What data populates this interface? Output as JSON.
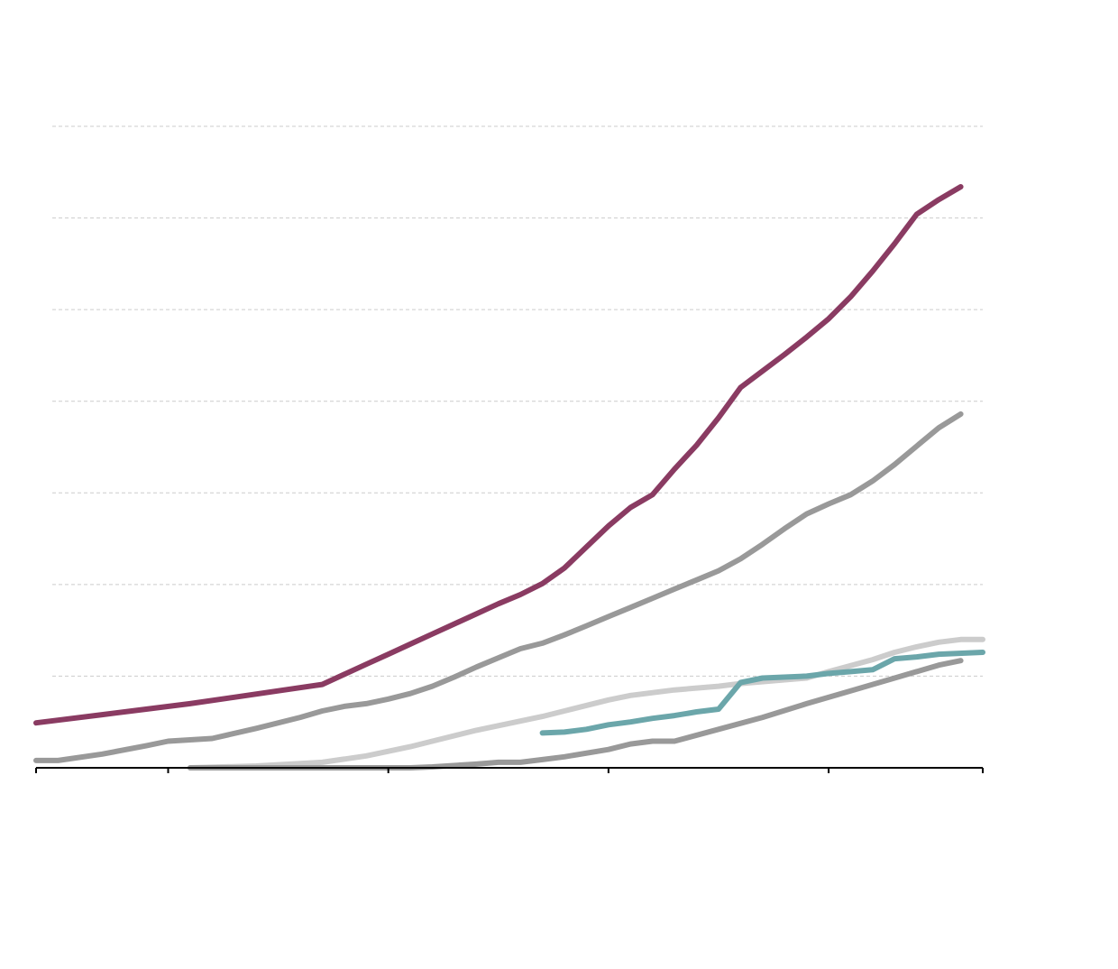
{
  "chart_data": {
    "type": "line",
    "title": "",
    "xlabel": "",
    "ylabel": "",
    "xlim": [
      0,
      43
    ],
    "ylim": [
      0,
      7
    ],
    "grid": true,
    "x_ticks": [
      0,
      6,
      16,
      26,
      36,
      43
    ],
    "series": [
      {
        "color": "#8a3b62",
        "points": [
          [
            0,
            0.49
          ],
          [
            1,
            0.52
          ],
          [
            3,
            0.58
          ],
          [
            5,
            0.64
          ],
          [
            7,
            0.7
          ],
          [
            9,
            0.77
          ],
          [
            11,
            0.84
          ],
          [
            13,
            0.91
          ],
          [
            14,
            1.02
          ],
          [
            15,
            1.13
          ],
          [
            16,
            1.24
          ],
          [
            17,
            1.35
          ],
          [
            18,
            1.46
          ],
          [
            19,
            1.57
          ],
          [
            20,
            1.68
          ],
          [
            21,
            1.79
          ],
          [
            22,
            1.89
          ],
          [
            23,
            2.01
          ],
          [
            24,
            2.18
          ],
          [
            25,
            2.41
          ],
          [
            26,
            2.64
          ],
          [
            27,
            2.84
          ],
          [
            28,
            2.98
          ],
          [
            29,
            3.26
          ],
          [
            30,
            3.52
          ],
          [
            31,
            3.82
          ],
          [
            32,
            4.15
          ],
          [
            33,
            4.33
          ],
          [
            34,
            4.51
          ],
          [
            35,
            4.7
          ],
          [
            36,
            4.9
          ],
          [
            37,
            5.14
          ],
          [
            38,
            5.42
          ],
          [
            39,
            5.72
          ],
          [
            40,
            6.04
          ],
          [
            41,
            6.2
          ],
          [
            42,
            6.34
          ]
        ]
      },
      {
        "color": "#999999",
        "points": [
          [
            0,
            0.08
          ],
          [
            1,
            0.08
          ],
          [
            3,
            0.15
          ],
          [
            5,
            0.24
          ],
          [
            6,
            0.29
          ],
          [
            8,
            0.32
          ],
          [
            10,
            0.43
          ],
          [
            12,
            0.55
          ],
          [
            13,
            0.62
          ],
          [
            14,
            0.67
          ],
          [
            15,
            0.7
          ],
          [
            16,
            0.75
          ],
          [
            17,
            0.81
          ],
          [
            18,
            0.89
          ],
          [
            19,
            0.99
          ],
          [
            20,
            1.1
          ],
          [
            21,
            1.2
          ],
          [
            22,
            1.3
          ],
          [
            23,
            1.36
          ],
          [
            24,
            1.45
          ],
          [
            25,
            1.55
          ],
          [
            26,
            1.65
          ],
          [
            27,
            1.75
          ],
          [
            28,
            1.85
          ],
          [
            29,
            1.95
          ],
          [
            30,
            2.05
          ],
          [
            31,
            2.15
          ],
          [
            32,
            2.28
          ],
          [
            33,
            2.44
          ],
          [
            34,
            2.61
          ],
          [
            35,
            2.77
          ],
          [
            36,
            2.88
          ],
          [
            37,
            2.98
          ],
          [
            38,
            3.13
          ],
          [
            39,
            3.31
          ],
          [
            40,
            3.51
          ],
          [
            41,
            3.71
          ],
          [
            42,
            3.86
          ]
        ]
      },
      {
        "color": "#cccccc",
        "points": [
          [
            7,
            0.0
          ],
          [
            10,
            0.02
          ],
          [
            13,
            0.06
          ],
          [
            15,
            0.13
          ],
          [
            17,
            0.23
          ],
          [
            18,
            0.29
          ],
          [
            20,
            0.41
          ],
          [
            21,
            0.46
          ],
          [
            23,
            0.56
          ],
          [
            24,
            0.62
          ],
          [
            26,
            0.74
          ],
          [
            27,
            0.79
          ],
          [
            29,
            0.85
          ],
          [
            31,
            0.89
          ],
          [
            32,
            0.92
          ],
          [
            34,
            0.96
          ],
          [
            35,
            0.98
          ],
          [
            36,
            1.05
          ],
          [
            38,
            1.18
          ],
          [
            39,
            1.26
          ],
          [
            40,
            1.32
          ],
          [
            41,
            1.37
          ],
          [
            42,
            1.4
          ],
          [
            43,
            1.4
          ]
        ]
      },
      {
        "color": "#6ba6aa",
        "points": [
          [
            23,
            0.38
          ],
          [
            24,
            0.39
          ],
          [
            25,
            0.42
          ],
          [
            26,
            0.47
          ],
          [
            27,
            0.5
          ],
          [
            28,
            0.54
          ],
          [
            29,
            0.57
          ],
          [
            30,
            0.61
          ],
          [
            31,
            0.64
          ],
          [
            32,
            0.93
          ],
          [
            33,
            0.98
          ],
          [
            35,
            1.0
          ],
          [
            36,
            1.03
          ],
          [
            37,
            1.05
          ],
          [
            38,
            1.07
          ],
          [
            39,
            1.19
          ],
          [
            40,
            1.21
          ],
          [
            41,
            1.24
          ],
          [
            43,
            1.26
          ]
        ]
      },
      {
        "color": "#999999",
        "points": [
          [
            7,
            0.0
          ],
          [
            10,
            0.0
          ],
          [
            13,
            0.0
          ],
          [
            16,
            0.0
          ],
          [
            17,
            0.0
          ],
          [
            18,
            0.01
          ],
          [
            20,
            0.04
          ],
          [
            21,
            0.06
          ],
          [
            22,
            0.06
          ],
          [
            23,
            0.09
          ],
          [
            24,
            0.12
          ],
          [
            26,
            0.2
          ],
          [
            27,
            0.26
          ],
          [
            28,
            0.29
          ],
          [
            29,
            0.29
          ],
          [
            31,
            0.42
          ],
          [
            33,
            0.55
          ],
          [
            35,
            0.7
          ],
          [
            37,
            0.84
          ],
          [
            39,
            0.98
          ],
          [
            41,
            1.12
          ],
          [
            42,
            1.17
          ]
        ]
      }
    ]
  }
}
